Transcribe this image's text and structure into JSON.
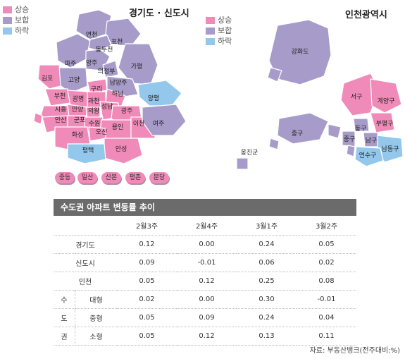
{
  "legend": {
    "rise": "상승",
    "flat": "보합",
    "fall": "하락",
    "colors": {
      "rise": "#f08ab8",
      "flat": "#a79bc9",
      "fall": "#93c8ec"
    }
  },
  "left_map": {
    "title": "경기도 · 신도시",
    "labels": [
      "연천",
      "포천",
      "동두천",
      "파주",
      "양주",
      "의정부",
      "가평",
      "김포",
      "고양",
      "구리",
      "남양주",
      "부천",
      "광명",
      "과천",
      "하남",
      "양평",
      "시흥",
      "안양",
      "의왕",
      "성남",
      "광주",
      "안산",
      "군포",
      "수원",
      "이천",
      "여주",
      "화성",
      "오산",
      "용인",
      "평택",
      "안성"
    ],
    "new_towns": [
      "중동",
      "일산",
      "산본",
      "평촌",
      "분당"
    ]
  },
  "right_map": {
    "title": "인천광역시",
    "labels": [
      "강화도",
      "서구",
      "계양구",
      "부평구",
      "동구",
      "중구",
      "남구",
      "중구",
      "연수구",
      "남동구",
      "옹진군"
    ]
  },
  "table": {
    "title": "수도권 아파트 변동률 추이",
    "columns": [
      "2월3주",
      "2월4주",
      "3월1주",
      "3월2주"
    ],
    "group_label": [
      "수",
      "도",
      "권"
    ],
    "rows": [
      {
        "label": "경기도",
        "values": [
          "0.12",
          "0.00",
          "0.24",
          "0.05"
        ]
      },
      {
        "label": "신도시",
        "values": [
          "0.09",
          "-0.01",
          "0.06",
          "0.02"
        ]
      },
      {
        "label": "인천",
        "values": [
          "0.05",
          "0.12",
          "0.25",
          "0.08"
        ]
      },
      {
        "label": "대형",
        "values": [
          "0.02",
          "0.00",
          "0.30",
          "-0.01"
        ]
      },
      {
        "label": "중형",
        "values": [
          "0.05",
          "0.09",
          "0.24",
          "0.04"
        ]
      },
      {
        "label": "소형",
        "values": [
          "0.05",
          "0.12",
          "0.13",
          "0.11"
        ]
      }
    ],
    "source": "자료: 부동산뱅크(전주대비:%)"
  }
}
